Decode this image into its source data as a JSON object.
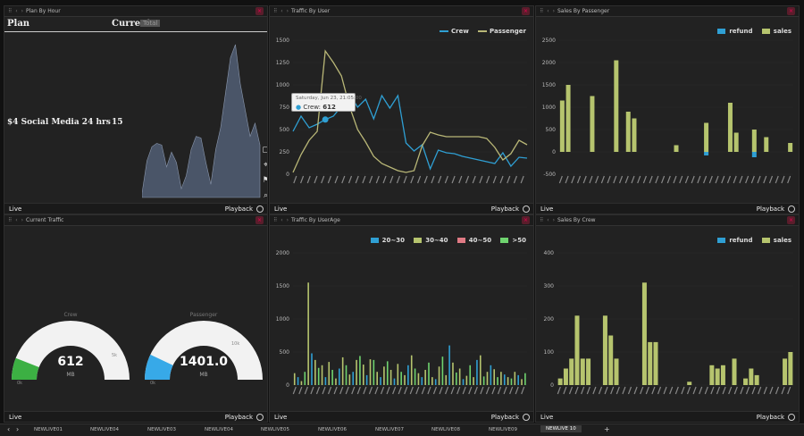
{
  "panels": {
    "plan_by_hour": {
      "title": "Plan By Hour",
      "table": {
        "col_plan": "Plan",
        "col_current": "Current",
        "current_badge": "Total",
        "row_plan": "$4 Social Media 24 hrs",
        "row_value": "15"
      },
      "footer_live": "Live",
      "footer_playback": "Playback"
    },
    "traffic_by_user": {
      "title": "Traffic By User",
      "legend": [
        "Crew",
        "Passenger"
      ],
      "tooltip": {
        "date": "Saturday, Jun 23, 21:05:00",
        "series": "Crew:",
        "value": "612"
      },
      "footer_live": "Live",
      "footer_playback": "Playback"
    },
    "sales_by_passenger": {
      "title": "Sales By Passenger",
      "legend": [
        "refund",
        "sales"
      ],
      "footer_live": "Live",
      "footer_playback": "Playback"
    },
    "current_traffic": {
      "title": "Current Traffic",
      "gauges": [
        {
          "label": "Crew",
          "value": "612",
          "unit": "MB",
          "min": "0k",
          "max": "5k",
          "fraction": 0.12,
          "color": "#3cb043"
        },
        {
          "label": "Passenger",
          "value": "1401.0",
          "unit": "MB",
          "min": "0k",
          "max": "10k",
          "fraction": 0.14,
          "color": "#37a9e8"
        }
      ],
      "footer_live": "Live",
      "footer_playback": "Playback"
    },
    "traffic_by_userage": {
      "title": "Traffic By UserAge",
      "legend": [
        "20~30",
        "30~40",
        "40~50",
        ">50"
      ],
      "footer_live": "Live",
      "footer_playback": "Playback"
    },
    "sales_by_crew": {
      "title": "Sales By Crew",
      "legend": [
        "refund",
        "sales"
      ],
      "footer_live": "Live",
      "footer_playback": "Playback"
    }
  },
  "colors": {
    "crew": "#2f9fd3",
    "passenger": "#b9b777",
    "refund": "#2f9fd3",
    "sales": "#b6c46e",
    "age20": "#2f9fd3",
    "age30": "#b6c46e",
    "age40": "#e07a84",
    "age50": "#6fd36f",
    "area": "#4a5568"
  },
  "icons": [
    "square-icon",
    "pin-icon",
    "bookmark-icon",
    "search-icon",
    "clock-icon",
    "close-icon"
  ],
  "tabs": [
    "NEWLIVE01",
    "NEWLIVE04",
    "NEWLIVE03",
    "NEWLIVE04",
    "NEWLIVE05",
    "NEWLIVE06",
    "NEWLIVE07",
    "NEWLIVE08",
    "NEWLIVE09",
    "NEWLIVE 10"
  ],
  "chart_data": [
    {
      "id": "plan_area",
      "type": "area",
      "values": [
        5,
        42,
        58,
        62,
        60,
        35,
        52,
        40,
        10,
        25,
        55,
        70,
        68,
        40,
        15,
        55,
        80,
        120,
        160,
        175,
        130,
        100,
        70,
        85,
        60
      ]
    },
    {
      "id": "traffic_by_user",
      "type": "line",
      "yticks": [
        "1500",
        "1250",
        "1000",
        "750",
        "500",
        "250",
        "0"
      ],
      "ylim": [
        0,
        1500
      ],
      "series": [
        {
          "name": "Crew",
          "values": [
            480,
            650,
            520,
            560,
            612,
            650,
            760,
            900,
            750,
            840,
            620,
            880,
            740,
            880,
            350,
            260,
            330,
            60,
            270,
            240,
            230,
            200,
            180,
            160,
            140,
            120,
            240,
            90,
            190,
            180
          ]
        },
        {
          "name": "Passenger",
          "values": [
            20,
            220,
            380,
            480,
            1380,
            1250,
            1100,
            760,
            500,
            360,
            200,
            120,
            80,
            40,
            20,
            40,
            320,
            470,
            440,
            420,
            420,
            420,
            420,
            420,
            400,
            300,
            160,
            230,
            380,
            330
          ]
        }
      ]
    },
    {
      "id": "sales_by_passenger",
      "type": "bar",
      "yticks": [
        "2500",
        "2000",
        "1500",
        "1000",
        "500",
        "0",
        "-500"
      ],
      "ylim": [
        -500,
        2500
      ],
      "sales": [
        1150,
        1500,
        0,
        0,
        0,
        1250,
        0,
        0,
        0,
        2050,
        0,
        900,
        750,
        0,
        0,
        0,
        0,
        0,
        0,
        150,
        0,
        0,
        0,
        0,
        650,
        0,
        0,
        0,
        1100,
        430,
        0,
        0,
        500,
        0,
        330,
        0,
        0,
        0,
        200
      ],
      "refund": [
        0,
        0,
        0,
        0,
        0,
        0,
        0,
        0,
        0,
        0,
        0,
        0,
        0,
        0,
        0,
        0,
        0,
        0,
        0,
        0,
        0,
        0,
        0,
        0,
        -80,
        0,
        0,
        0,
        0,
        0,
        0,
        0,
        -120,
        0,
        0,
        0,
        0,
        0,
        0
      ]
    },
    {
      "id": "traffic_by_userage",
      "type": "bar",
      "yticks": [
        "2000",
        "1500",
        "1000",
        "500",
        "0"
      ],
      "ylim": [
        0,
        2000
      ],
      "values": [
        180,
        120,
        60,
        200,
        1550,
        480,
        380,
        260,
        300,
        120,
        350,
        230,
        100,
        250,
        420,
        300,
        160,
        200,
        380,
        440,
        310,
        150,
        390,
        380,
        200,
        120,
        280,
        360,
        230,
        100,
        320,
        200,
        150,
        300,
        450,
        250,
        180,
        120,
        230,
        340,
        120,
        90,
        280,
        430,
        150,
        600,
        340,
        190,
        250,
        90,
        140,
        300,
        120,
        380,
        450,
        130,
        200,
        300,
        240,
        120,
        200,
        160,
        120,
        100,
        200,
        150,
        90,
        180
      ]
    },
    {
      "id": "sales_by_crew",
      "type": "bar",
      "yticks": [
        "400",
        "300",
        "200",
        "100",
        "0"
      ],
      "ylim": [
        0,
        400
      ],
      "values": [
        20,
        50,
        80,
        210,
        80,
        80,
        0,
        0,
        210,
        150,
        80,
        0,
        0,
        0,
        0,
        310,
        130,
        130,
        0,
        0,
        0,
        0,
        0,
        10,
        0,
        0,
        0,
        60,
        50,
        60,
        0,
        80,
        0,
        20,
        50,
        30,
        0,
        0,
        0,
        0,
        80,
        100
      ]
    }
  ]
}
